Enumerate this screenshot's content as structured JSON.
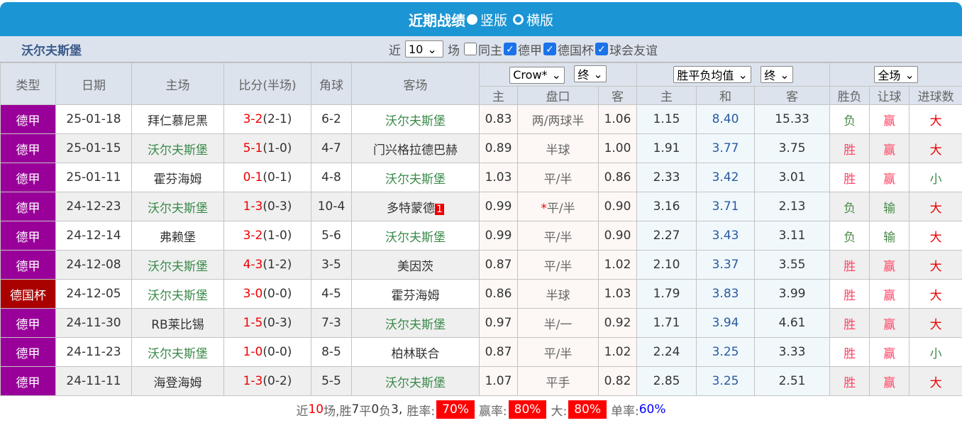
{
  "title": "近期战绩",
  "view_vertical": "竖版",
  "view_horizontal": "横版",
  "team": "沃尔夫斯堡",
  "filter": {
    "near": "近",
    "count": "10",
    "games": "场",
    "same_home": "同主",
    "leagues": [
      "德甲",
      "德国杯",
      "球会友谊"
    ]
  },
  "headers": {
    "type": "类型",
    "date": "日期",
    "home": "主场",
    "score": "比分(半场)",
    "corner": "角球",
    "away": "客场",
    "company": "Crow*",
    "hc_stage": "终",
    "ox_type": "胜平负均值",
    "ox_stage": "终",
    "period": "全场",
    "sub": [
      "主",
      "盘口",
      "客",
      "主",
      "和",
      "客",
      "胜负",
      "让球",
      "进球数"
    ]
  },
  "rows": [
    {
      "league": "德甲",
      "date": "25-01-18",
      "home": "拜仁慕尼黑",
      "ft": "3-2",
      "ht": "(2-1)",
      "corner": "6-2",
      "away": "沃尔夫斯堡",
      "h": "0.83",
      "line": "两/两球半",
      "a": "1.06",
      "o1": "1.15",
      "ox": "8.40",
      "o2": "15.33",
      "res": "负",
      "hcr": "赢",
      "ou": "大"
    },
    {
      "league": "德甲",
      "date": "25-01-15",
      "home": "沃尔夫斯堡",
      "ft": "5-1",
      "ht": "(1-0)",
      "corner": "4-7",
      "away": "门兴格拉德巴赫",
      "h": "0.89",
      "line": "半球",
      "a": "1.00",
      "o1": "1.91",
      "ox": "3.77",
      "o2": "3.75",
      "res": "胜",
      "hcr": "赢",
      "ou": "大"
    },
    {
      "league": "德甲",
      "date": "25-01-11",
      "home": "霍芬海姆",
      "ft": "0-1",
      "ht": "(0-1)",
      "corner": "4-8",
      "away": "沃尔夫斯堡",
      "h": "1.03",
      "line": "平/半",
      "a": "0.86",
      "o1": "2.33",
      "ox": "3.42",
      "o2": "3.01",
      "res": "胜",
      "hcr": "赢",
      "ou": "小"
    },
    {
      "league": "德甲",
      "date": "24-12-23",
      "home": "沃尔夫斯堡",
      "ft": "1-3",
      "ht": "(0-3)",
      "corner": "10-4",
      "away": "多特蒙德",
      "card": "1",
      "h": "0.99",
      "mark": "*",
      "line": "平/半",
      "a": "0.90",
      "o1": "3.16",
      "ox": "3.71",
      "o2": "2.13",
      "res": "负",
      "hcr": "输",
      "ou": "大"
    },
    {
      "league": "德甲",
      "date": "24-12-14",
      "home": "弗赖堡",
      "ft": "3-2",
      "ht": "(1-0)",
      "corner": "5-6",
      "away": "沃尔夫斯堡",
      "h": "0.99",
      "line": "平/半",
      "a": "0.90",
      "o1": "2.27",
      "ox": "3.43",
      "o2": "3.11",
      "res": "负",
      "hcr": "输",
      "ou": "大"
    },
    {
      "league": "德甲",
      "date": "24-12-08",
      "home": "沃尔夫斯堡",
      "ft": "4-3",
      "ht": "(1-2)",
      "corner": "3-5",
      "away": "美因茨",
      "h": "0.87",
      "line": "平/半",
      "a": "1.02",
      "o1": "2.10",
      "ox": "3.37",
      "o2": "3.55",
      "res": "胜",
      "hcr": "赢",
      "ou": "大"
    },
    {
      "league": "德国杯",
      "date": "24-12-05",
      "home": "沃尔夫斯堡",
      "ft": "3-0",
      "ht": "(0-0)",
      "corner": "4-5",
      "away": "霍芬海姆",
      "h": "0.86",
      "line": "半球",
      "a": "1.03",
      "o1": "1.79",
      "ox": "3.83",
      "o2": "3.99",
      "res": "胜",
      "hcr": "赢",
      "ou": "大"
    },
    {
      "league": "德甲",
      "date": "24-11-30",
      "home": "RB莱比锡",
      "ft": "1-5",
      "ht": "(0-3)",
      "corner": "7-3",
      "away": "沃尔夫斯堡",
      "h": "0.97",
      "line": "半/一",
      "a": "0.92",
      "o1": "1.71",
      "ox": "3.94",
      "o2": "4.61",
      "res": "胜",
      "hcr": "赢",
      "ou": "大"
    },
    {
      "league": "德甲",
      "date": "24-11-23",
      "home": "沃尔夫斯堡",
      "ft": "1-0",
      "ht": "(0-0)",
      "corner": "8-5",
      "away": "柏林联合",
      "h": "0.87",
      "line": "平/半",
      "a": "1.02",
      "o1": "2.24",
      "ox": "3.25",
      "o2": "3.33",
      "res": "胜",
      "hcr": "赢",
      "ou": "小"
    },
    {
      "league": "德甲",
      "date": "24-11-11",
      "home": "海登海姆",
      "ft": "1-3",
      "ht": "(0-2)",
      "corner": "5-5",
      "away": "沃尔夫斯堡",
      "h": "1.07",
      "line": "平手",
      "a": "0.82",
      "o1": "2.85",
      "ox": "3.25",
      "o2": "2.51",
      "res": "胜",
      "hcr": "赢",
      "ou": "大"
    }
  ],
  "footer": {
    "near": "近",
    "n": "10",
    "games": "场,",
    "w_label": "胜",
    "w": "7",
    "d_label": "平",
    "d": "0",
    "l_label": "负",
    "l": "3,",
    "win_rate_label": "胜率:",
    "win_rate": "70%",
    "hc_rate_label": "赢率:",
    "hc_rate": "80%",
    "over_label": "大:",
    "over_rate": "80%",
    "odd_label": "单率:",
    "odd_rate": "60%"
  },
  "colors": {
    "header": "#1b95d4",
    "league": "#990099",
    "cup": "#aa0000",
    "highlight": "#ff0000"
  }
}
